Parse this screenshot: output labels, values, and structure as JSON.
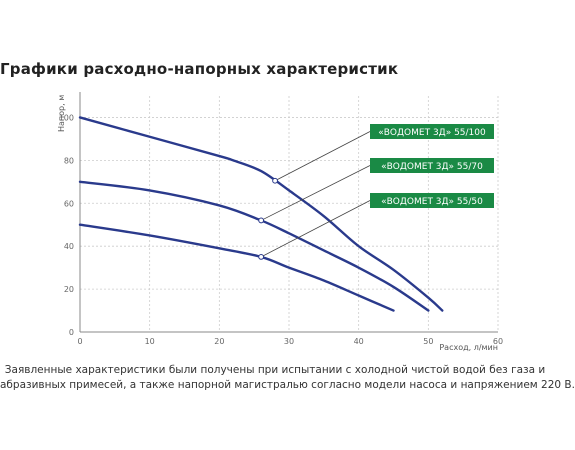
{
  "page_title": "Графики расходно-напорных характеристик",
  "footnote": {
    "line1": "Заявленные характеристики были получены при испытании с холодной чистой водой без газа и",
    "line2": "абразивных примесей, а также напорной магистралью согласно модели насоса и напряжением  220 В."
  },
  "colors": {
    "curve": "#2a3a8c",
    "grid": "#cccccc",
    "label_bg": "#1a8a45",
    "label_text": "#ffffff",
    "leader": "#444444"
  },
  "chart_data": {
    "type": "line",
    "title": "",
    "xlabel": "Расход, л/мин",
    "ylabel": "Напор, м",
    "xlim": [
      0,
      60
    ],
    "ylim": [
      0,
      110
    ],
    "x_ticks": [
      0,
      10,
      20,
      30,
      40,
      50,
      60
    ],
    "y_ticks": [
      0,
      20,
      40,
      60,
      80,
      100
    ],
    "grid": true,
    "series": [
      {
        "name": "«ВОДОМЕТ 3Д» 55/100",
        "points": [
          [
            0,
            100
          ],
          [
            10,
            91
          ],
          [
            20,
            82
          ],
          [
            22,
            80
          ],
          [
            26,
            75
          ],
          [
            30,
            66
          ],
          [
            35,
            54
          ],
          [
            40,
            40
          ],
          [
            45,
            29
          ],
          [
            50,
            16
          ],
          [
            52,
            10
          ]
        ],
        "marker_x": 28
      },
      {
        "name": "«ВОДОМЕТ 3Д» 55/70",
        "points": [
          [
            0,
            70
          ],
          [
            10,
            66
          ],
          [
            20,
            59
          ],
          [
            26,
            52
          ],
          [
            30,
            46
          ],
          [
            35,
            38
          ],
          [
            40,
            30
          ],
          [
            45,
            21
          ],
          [
            50,
            10
          ]
        ],
        "marker_x": 26
      },
      {
        "name": "«ВОДОМЕТ 3Д» 55/50",
        "points": [
          [
            0,
            50
          ],
          [
            10,
            45
          ],
          [
            20,
            39
          ],
          [
            26,
            35
          ],
          [
            30,
            30
          ],
          [
            35,
            24
          ],
          [
            40,
            17
          ],
          [
            45,
            10
          ]
        ],
        "marker_x": 26
      }
    ]
  }
}
